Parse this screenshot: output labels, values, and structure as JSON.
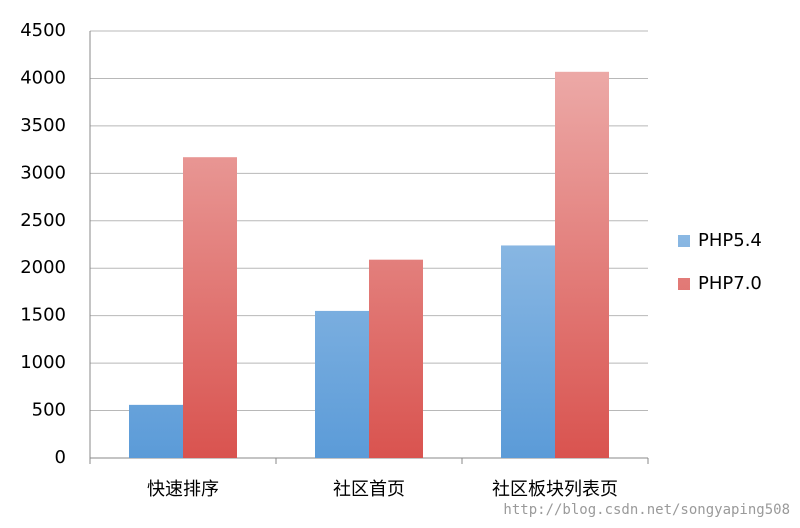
{
  "chart_data": {
    "type": "bar",
    "categories": [
      "快速排序",
      "社区首页",
      "社区板块列表页"
    ],
    "series": [
      {
        "name": "PHP5.4",
        "color": "#5b9bd8",
        "values": [
          560,
          1550,
          2240
        ]
      },
      {
        "name": "PHP7.0",
        "color": "#d9534f",
        "values": [
          3170,
          2090,
          4070
        ]
      }
    ],
    "ylim": [
      0,
      4500
    ],
    "yticks": [
      0,
      500,
      1000,
      1500,
      2000,
      2500,
      3000,
      3500,
      4000,
      4500
    ],
    "grid": true,
    "legend": "right",
    "watermark": "http://blog.csdn.net/songyaping508"
  }
}
